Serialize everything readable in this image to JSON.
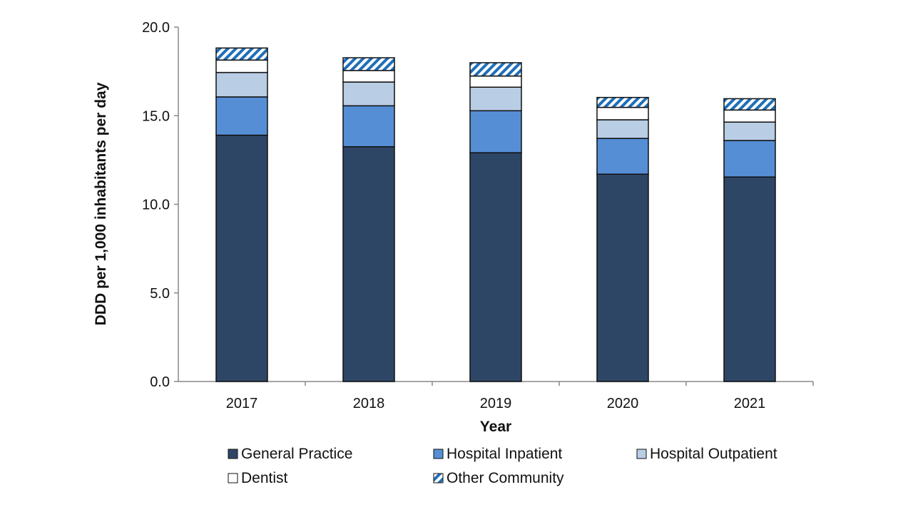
{
  "chart_data": {
    "type": "bar",
    "stacked": true,
    "title": "",
    "xlabel": "Year",
    "ylabel": "DDD per 1,000 inhabitants per day",
    "ylim": [
      0,
      20
    ],
    "yticks": [
      "0.0",
      "5.0",
      "10.0",
      "15.0",
      "20.0"
    ],
    "categories": [
      "2017",
      "2018",
      "2019",
      "2020",
      "2021"
    ],
    "series": [
      {
        "name": "General Practice",
        "color": "#2e4666",
        "values": [
          13.9,
          13.25,
          12.91,
          11.7,
          11.54
        ]
      },
      {
        "name": "Hospital Inpatient",
        "color": "#558ed5",
        "values": [
          2.16,
          2.31,
          2.37,
          2.02,
          2.06
        ]
      },
      {
        "name": "Hospital Outpatient",
        "color": "#b9cde5",
        "values": [
          1.38,
          1.34,
          1.33,
          1.05,
          1.04
        ]
      },
      {
        "name": "Dentist",
        "color": "#ffffff",
        "values": [
          0.7,
          0.65,
          0.63,
          0.7,
          0.68
        ]
      },
      {
        "name": "Other Community",
        "color": "hatch",
        "values": [
          0.68,
          0.72,
          0.75,
          0.56,
          0.64
        ]
      }
    ],
    "legend_position": "bottom",
    "grid": false
  }
}
